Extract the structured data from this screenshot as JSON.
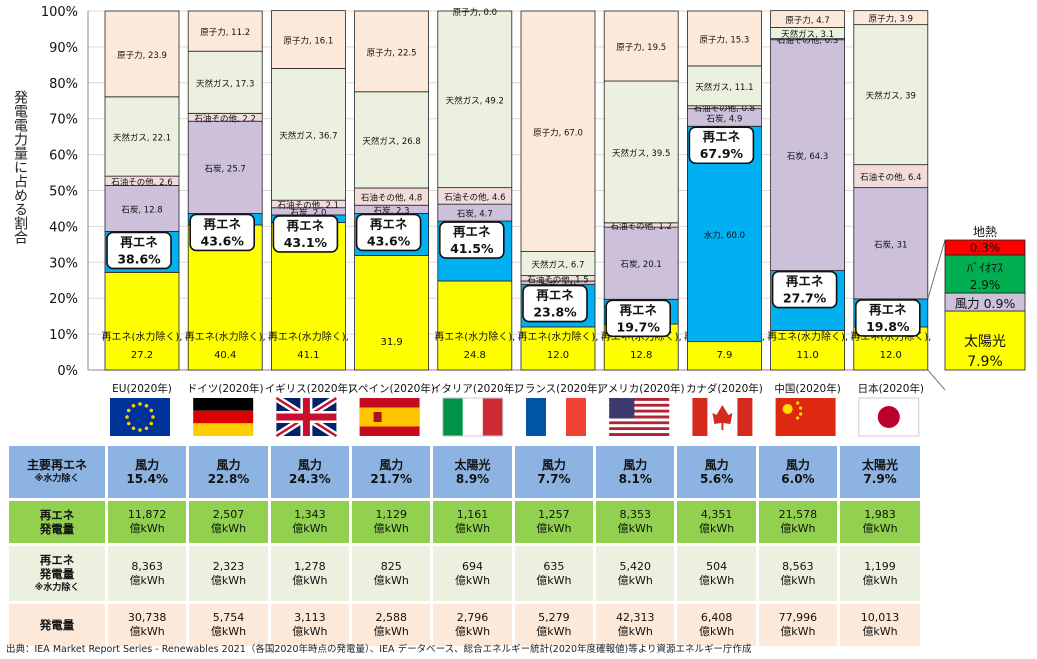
{
  "chart_data": {
    "type": "bar",
    "stacked": true,
    "ylabel": "発電電力量に占める割合",
    "ylim": [
      0,
      100
    ],
    "yticks": [
      "0%",
      "10%",
      "20%",
      "30%",
      "40%",
      "50%",
      "60%",
      "70%",
      "80%",
      "90%",
      "100%"
    ],
    "categories": [
      "EU(2020年)",
      "ドイツ(2020年)",
      "イギリス(2020年)",
      "スペイン(2020年)",
      "イタリア(2020年)",
      "フランス(2020年)",
      "アメリカ(2020年)",
      "カナダ(2020年)",
      "中国(2020年)",
      "日本(2020年)"
    ],
    "series": [
      {
        "name": "再エネ(水力除く)",
        "color": "#ffff00",
        "values": [
          27.2,
          40.4,
          41.1,
          31.9,
          24.8,
          12.0,
          12.8,
          7.9,
          11.0,
          12.0
        ],
        "labels": [
          "再エネ(水力除く),\n27.2",
          "再エネ(水力除く),\n40.4",
          "再エネ(水力除く),\n41.1",
          "31.9",
          "再エネ(水力除く),\n24.8",
          "再エネ(水力除く),\n12.0",
          "再エネ(水力除く),\n12.8",
          "再エネ(水力除く),\n7.9",
          "再エネ(水力除く),\n11.0",
          "再エネ(水力除く),\n12.0"
        ]
      },
      {
        "name": "水力",
        "color": "#00b0f0",
        "values": [
          11.4,
          3.2,
          2.1,
          11.7,
          16.7,
          11.8,
          6.9,
          60.0,
          16.7,
          7.8
        ],
        "labels": [
          "水力, 11.4",
          "水力, 3.2",
          "水力, 2.1",
          "水力, 11.7",
          "水力, 16.7",
          "水力, 11.8",
          "水力, 6.9",
          "水力, 60.0",
          "水力, 16.7",
          "水力, 7.8"
        ]
      },
      {
        "name": "石炭",
        "color": "#ccc0da",
        "values": [
          12.8,
          25.7,
          2.0,
          2.3,
          4.7,
          1.0,
          20.1,
          4.9,
          64.3,
          31
        ],
        "labels": [
          "石炭, 12.8",
          "石炭, 25.7",
          "石炭, 2.0",
          "石炭, 2.3",
          "石炭, 4.7",
          "石炭, 1.0",
          "石炭, 20.1",
          "石炭, 4.9",
          "石炭, 64.3",
          "石炭, 31"
        ]
      },
      {
        "name": "石油その他",
        "color": "#f2dcdb",
        "values": [
          2.6,
          2.2,
          2.1,
          4.8,
          4.6,
          1.5,
          1.2,
          0.8,
          0.3,
          6.4
        ],
        "labels": [
          "石油その他, 2.6",
          "石油その他, 2.2",
          "石油その他, 2.1",
          "石油その他, 4.8",
          "石油その他, 4.6",
          "石油その他, 1.5",
          "石油その他, 1.2",
          "石油その他, 0.8",
          "石油その他, 0.3",
          "石油その他, 6.4"
        ]
      },
      {
        "name": "天然ガス",
        "color": "#ebf1de",
        "values": [
          22.1,
          17.3,
          36.7,
          26.8,
          49.2,
          6.7,
          39.5,
          11.1,
          3.1,
          39
        ],
        "labels": [
          "天然ガス, 22.1",
          "天然ガス, 17.3",
          "天然ガス, 36.7",
          "天然ガス, 26.8",
          "天然ガス, 49.2",
          "天然ガス, 6.7",
          "天然ガス, 39.5",
          "天然ガス, 11.1",
          "天然ガス, 3.1",
          "天然ガス, 39"
        ]
      },
      {
        "name": "原子力",
        "color": "#fde9d9",
        "values": [
          23.9,
          11.2,
          16.1,
          22.5,
          0.0,
          67.0,
          19.5,
          15.3,
          4.7,
          3.9
        ],
        "labels": [
          "原子力, 23.9",
          "原子力, 11.2",
          "原子力, 16.1",
          "原子力, 22.5",
          "原子力, 0.0",
          "原子力, 67.0",
          "原子力, 19.5",
          "原子力, 15.3",
          "原子力, 4.7",
          "原子力, 3.9"
        ]
      }
    ],
    "renewable_callouts": [
      "38.6%",
      "43.6%",
      "43.1%",
      "43.6%",
      "41.5%",
      "23.8%",
      "19.7%",
      "67.9%",
      "27.7%",
      "19.8%"
    ],
    "callout_prefix": "再エネ",
    "japan_breakdown": [
      {
        "label": "太陽光",
        "value": "7.9%",
        "color": "#ffff00"
      },
      {
        "label": "風力",
        "value": "0.9%",
        "color": "#ccc0da"
      },
      {
        "label": "ﾊﾞｲｵﾏｽ",
        "value": "2.9%",
        "color": "#00b050"
      },
      {
        "label": "地熱",
        "value": "0.3%",
        "color": "#ff0000"
      }
    ],
    "flags": [
      "eu",
      "germany",
      "uk",
      "spain",
      "italy",
      "france",
      "usa",
      "canada",
      "china",
      "japan"
    ]
  },
  "table": {
    "rows": [
      {
        "header": "主要再エネ",
        "sub": "※水力除く",
        "cells": [
          [
            "風力",
            "15.4%"
          ],
          [
            "風力",
            "22.8%"
          ],
          [
            "風力",
            "24.3%"
          ],
          [
            "風力",
            "21.7%"
          ],
          [
            "太陽光",
            "8.9%"
          ],
          [
            "風力",
            "7.7%"
          ],
          [
            "風力",
            "8.1%"
          ],
          [
            "風力",
            "5.6%"
          ],
          [
            "風力",
            "6.0%"
          ],
          [
            "太陽光",
            "7.9%"
          ]
        ]
      },
      {
        "header": "再エネ",
        "header2": "発電量",
        "cells": [
          [
            "11,872",
            "億kWh"
          ],
          [
            "2,507",
            "億kWh"
          ],
          [
            "1,343",
            "億kWh"
          ],
          [
            "1,129",
            "億kWh"
          ],
          [
            "1,161",
            "億kWh"
          ],
          [
            "1,257",
            "億kWh"
          ],
          [
            "8,353",
            "億kWh"
          ],
          [
            "4,351",
            "億kWh"
          ],
          [
            "21,578",
            "億kWh"
          ],
          [
            "1,983",
            "億kWh"
          ]
        ]
      },
      {
        "header": "再エネ",
        "header2": "発電量",
        "sub": "※水力除く",
        "cells": [
          [
            "8,363",
            "億kWh"
          ],
          [
            "2,323",
            "億kWh"
          ],
          [
            "1,278",
            "億kWh"
          ],
          [
            "825",
            "億kWh"
          ],
          [
            "694",
            "億kWh"
          ],
          [
            "635",
            "億kWh"
          ],
          [
            "5,420",
            "億kWh"
          ],
          [
            "504",
            "億kWh"
          ],
          [
            "8,563",
            "億kWh"
          ],
          [
            "1,199",
            "億kWh"
          ]
        ]
      },
      {
        "header": "発電量",
        "cells": [
          [
            "30,738",
            "億kWh"
          ],
          [
            "5,754",
            "億kWh"
          ],
          [
            "3,113",
            "億kWh"
          ],
          [
            "2,588",
            "億kWh"
          ],
          [
            "2,796",
            "億kWh"
          ],
          [
            "5,279",
            "億kWh"
          ],
          [
            "42,313",
            "億kWh"
          ],
          [
            "6,408",
            "億kWh"
          ],
          [
            "77,996",
            "億kWh"
          ],
          [
            "10,013",
            "億kWh"
          ]
        ]
      }
    ]
  },
  "footer": "出典：IEA Market Report Series - Renewables 2021（各国2020年時点の発電量）、IEA データベース、総合エネルギー統計(2020年度確報値)等より資源エネルギー庁作成"
}
